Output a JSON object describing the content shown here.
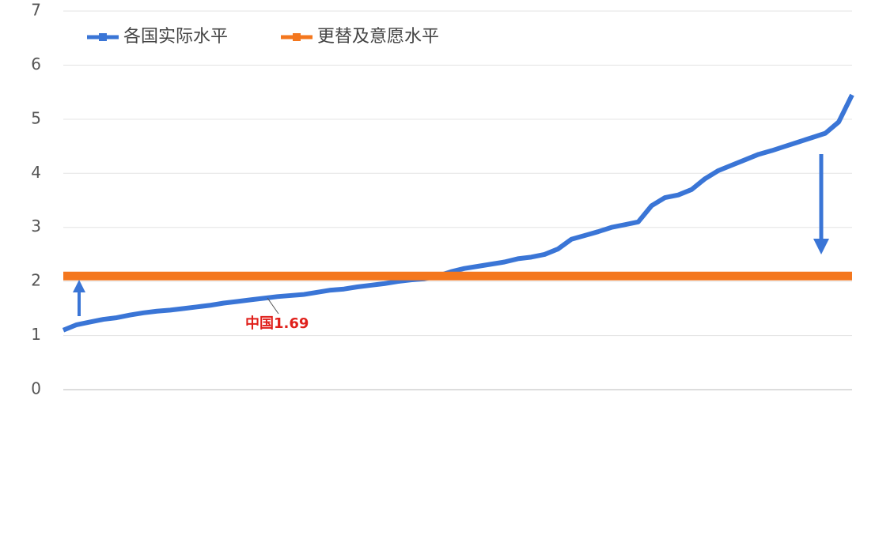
{
  "chart_data": {
    "type": "line",
    "series": [
      {
        "name": "各国实际水平",
        "color": "#3a75d6",
        "x": [
          0,
          1,
          2,
          3,
          4,
          5,
          6,
          7,
          8,
          9,
          10,
          11,
          12,
          13,
          14,
          15,
          16,
          17,
          18,
          19,
          20,
          21,
          22,
          23,
          24,
          25,
          26,
          27,
          28,
          29,
          30,
          31,
          32,
          33,
          34,
          35,
          36,
          37,
          38,
          39,
          40,
          41,
          42,
          43,
          44,
          45,
          46,
          47,
          48,
          49,
          50,
          51,
          52,
          53,
          54,
          55,
          56,
          57,
          58,
          59
        ],
        "values": [
          1.1,
          1.2,
          1.25,
          1.3,
          1.33,
          1.38,
          1.42,
          1.45,
          1.47,
          1.5,
          1.53,
          1.56,
          1.6,
          1.63,
          1.66,
          1.69,
          1.72,
          1.74,
          1.76,
          1.8,
          1.84,
          1.86,
          1.9,
          1.93,
          1.96,
          2.0,
          2.03,
          2.05,
          2.1,
          2.18,
          2.24,
          2.28,
          2.32,
          2.36,
          2.42,
          2.45,
          2.5,
          2.6,
          2.78,
          2.85,
          2.92,
          3.0,
          3.05,
          3.1,
          3.4,
          3.55,
          3.6,
          3.7,
          3.9,
          4.05,
          4.15,
          4.25,
          4.35,
          4.42,
          4.5,
          4.58,
          4.66,
          4.74,
          4.95,
          5.45
        ]
      },
      {
        "name": "更替及意愿水平",
        "color": "#f4771e",
        "x": [
          0,
          59
        ],
        "values": [
          2.1,
          2.1
        ]
      }
    ],
    "annotation": "中国1.69",
    "xlim": [
      0,
      59
    ],
    "ylim": [
      0,
      7
    ],
    "yticks": [
      0,
      1,
      2,
      3,
      4,
      5,
      6,
      7
    ],
    "grid": true
  }
}
